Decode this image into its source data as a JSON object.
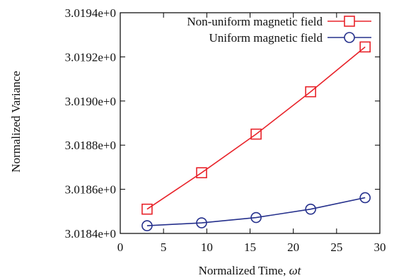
{
  "chart_data": {
    "type": "line",
    "xlabel_prefix": "Normalized Time, ",
    "xlabel_symbol": "ωt",
    "ylabel": "Normalized Variance",
    "xlim": [
      0,
      30
    ],
    "ylim": [
      3.0184,
      3.0194
    ],
    "xticks": [
      0,
      5,
      10,
      15,
      20,
      25,
      30
    ],
    "yticks": [
      3.0184,
      3.0186,
      3.0188,
      3.019,
      3.0192,
      3.0194
    ],
    "ytick_labels": [
      "3.0184e+0",
      "3.0186e+0",
      "3.0188e+0",
      "3.0190e+0",
      "3.0192e+0",
      "3.0194e+0"
    ],
    "grid": false,
    "legend_position": "top-right",
    "series": [
      {
        "name": "Non-uniform magnetic field",
        "marker": "square",
        "color": "#e8232a",
        "x": [
          3.1,
          9.4,
          15.7,
          22.0,
          28.3
        ],
        "y": [
          3.01851,
          3.018675,
          3.01885,
          3.019042,
          3.019245
        ]
      },
      {
        "name": "Uniform magnetic field",
        "marker": "circle",
        "color": "#25308c",
        "x": [
          3.1,
          9.4,
          15.7,
          22.0,
          28.3
        ],
        "y": [
          3.018435,
          3.018448,
          3.018472,
          3.01851,
          3.018562
        ]
      }
    ]
  }
}
